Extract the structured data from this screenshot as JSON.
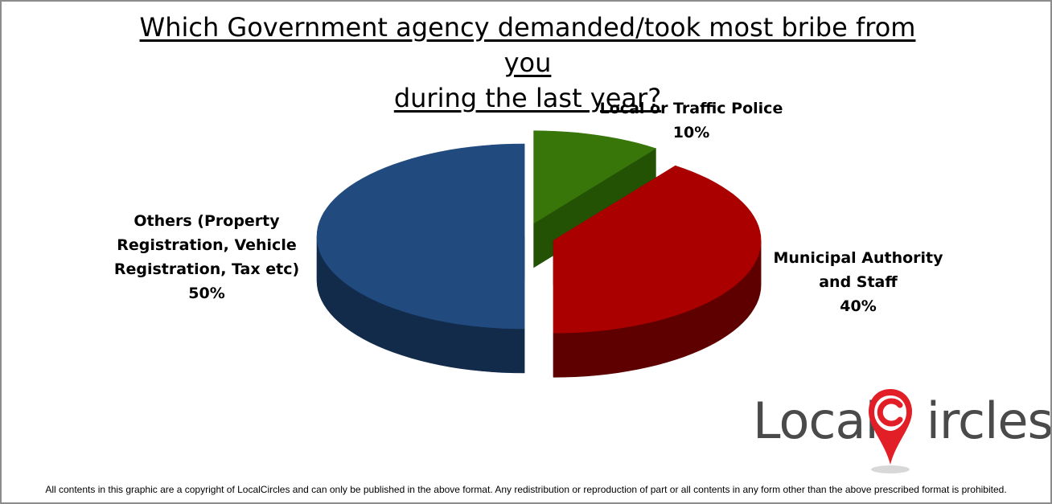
{
  "chart_data": {
    "type": "pie",
    "title_lines": [
      "Which Government agency demanded/took most bribe from you",
      "during the last year?"
    ],
    "slices": [
      {
        "label_lines": [
          "Local or Traffic Police"
        ],
        "value": 10,
        "value_label": "10%",
        "color": "#38760a",
        "dark_color": "#245205",
        "exploded": true
      },
      {
        "label_lines": [
          "Municipal Authority",
          "and Staff"
        ],
        "value": 40,
        "value_label": "40%",
        "color": "#aa0000",
        "dark_color": "#5e0000",
        "exploded": true
      },
      {
        "label_lines": [
          "Others (Property",
          "Registration, Vehicle",
          "Registration, Tax etc)"
        ],
        "value": 50,
        "value_label": "50%",
        "color": "#214a7e",
        "dark_color": "#132b4b",
        "exploded": false
      }
    ],
    "style": "3d-exploded"
  },
  "logo": {
    "text_before": "Local",
    "text_after": "ircles",
    "accent_color": "#e21f26"
  },
  "footer": "All contents in this graphic are a copyright of LocalCircles and can only be published in the above format. Any redistribution or reproduction of part or all contents in any form other than the above prescribed format is prohibited."
}
